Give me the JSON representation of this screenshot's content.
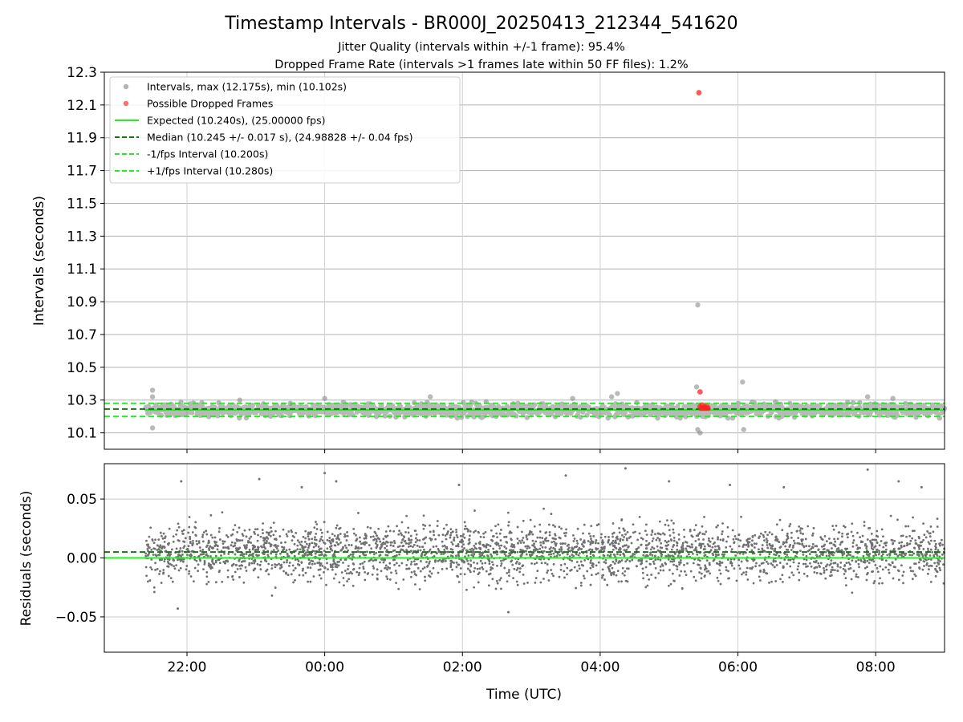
{
  "chart_data": {
    "type": "scatter",
    "title": "Timestamp Intervals - BR000J_20250413_212344_541620",
    "subtitle_1": "Jitter Quality (intervals within +/-1 frame): 95.4%",
    "subtitle_2": "Dropped Frame Rate (intervals >1 frames late within 50 FF files): 1.2%",
    "xlabel": "Time (UTC)",
    "x_range": [
      "2025-04-13 20:48",
      "2025-04-14 09:00"
    ],
    "x_ticks": [
      {
        "time": "2025-04-13 22:00",
        "label": "22:00"
      },
      {
        "time": "2025-04-14 00:00",
        "label": "00:00"
      },
      {
        "time": "2025-04-14 02:00",
        "label": "02:00"
      },
      {
        "time": "2025-04-14 04:00",
        "label": "04:00"
      },
      {
        "time": "2025-04-14 06:00",
        "label": "06:00"
      },
      {
        "time": "2025-04-14 08:00",
        "label": "08:00"
      }
    ],
    "data_x_range": [
      "2025-04-13 21:24",
      "2025-04-14 09:00"
    ],
    "upper_panel": {
      "ylabel": "Intervals (seconds)",
      "ylim": [
        10.0,
        12.3
      ],
      "y_ticks": [
        "10.1",
        "10.3",
        "10.5",
        "10.7",
        "10.9",
        "11.1",
        "11.3",
        "11.5",
        "11.7",
        "11.9",
        "12.1",
        "12.3"
      ],
      "grid": true,
      "legend_position": "top-left",
      "legend": [
        {
          "label": "Intervals, max (12.175s), min (10.102s)",
          "kind": "marker",
          "color": "#a0a0a0"
        },
        {
          "label": "Possible Dropped Frames",
          "kind": "marker",
          "color": "#ff5555"
        },
        {
          "label": "Expected (10.240s), (25.00000 fps)",
          "kind": "solid",
          "color": "#22ee22"
        },
        {
          "label": "Median (10.245 +/- 0.017 s), (24.98828 +/- 0.04 fps)",
          "kind": "dashed",
          "color": "#117711"
        },
        {
          "label": "-1/fps Interval (10.200s)",
          "kind": "dashed",
          "color": "#22ee22"
        },
        {
          "label": "+1/fps Interval (10.280s)",
          "kind": "dashed",
          "color": "#22ee22"
        }
      ],
      "reference_lines": {
        "expected": 10.24,
        "median": 10.245,
        "minus_one_fps": 10.2,
        "plus_one_fps": 10.28
      },
      "interval_band": [
        10.2,
        10.28
      ],
      "outliers": [
        {
          "time": "2025-04-13 21:30",
          "value": 10.36
        },
        {
          "time": "2025-04-13 21:30",
          "value": 10.32
        },
        {
          "time": "2025-04-13 21:30",
          "value": 10.13
        },
        {
          "time": "2025-04-13 22:46",
          "value": 10.3
        },
        {
          "time": "2025-04-13 23:30",
          "value": 10.28
        },
        {
          "time": "2025-04-14 00:00",
          "value": 10.31
        },
        {
          "time": "2025-04-14 01:32",
          "value": 10.32
        },
        {
          "time": "2025-04-14 03:36",
          "value": 10.31
        },
        {
          "time": "2025-04-14 04:10",
          "value": 10.32
        },
        {
          "time": "2025-04-14 04:15",
          "value": 10.34
        },
        {
          "time": "2025-04-14 05:25",
          "value": 10.88
        },
        {
          "time": "2025-04-14 05:24",
          "value": 10.38
        },
        {
          "time": "2025-04-14 05:25",
          "value": 10.12
        },
        {
          "time": "2025-04-14 05:27",
          "value": 10.1
        },
        {
          "time": "2025-04-14 06:04",
          "value": 10.41
        },
        {
          "time": "2025-04-14 06:05",
          "value": 10.12
        },
        {
          "time": "2025-04-14 07:53",
          "value": 10.32
        },
        {
          "time": "2025-04-14 08:15",
          "value": 10.31
        }
      ],
      "dropped_frames": [
        {
          "time": "2025-04-14 05:26",
          "value": 12.175
        },
        {
          "time": "2025-04-14 05:27",
          "value": 10.35
        },
        {
          "time": "2025-04-14 05:27",
          "value": 10.26
        },
        {
          "time": "2025-04-14 05:28",
          "value": 10.25
        },
        {
          "time": "2025-04-14 05:29",
          "value": 10.27
        },
        {
          "time": "2025-04-14 05:30",
          "value": 10.25
        },
        {
          "time": "2025-04-14 05:31",
          "value": 10.26
        },
        {
          "time": "2025-04-14 05:32",
          "value": 10.25
        },
        {
          "time": "2025-04-14 05:33",
          "value": 10.26
        },
        {
          "time": "2025-04-14 05:34",
          "value": 10.25
        }
      ]
    },
    "lower_panel": {
      "ylabel": "Residuals (seconds)",
      "ylim": [
        -0.08,
        0.08
      ],
      "y_ticks": [
        "0.05",
        "0.00",
        "−0.05"
      ],
      "grid": true,
      "reference_lines": {
        "zero": 0.0,
        "median_offset": 0.005
      },
      "residual_outliers": [
        {
          "time": "2025-04-13 21:55",
          "value": 0.065
        },
        {
          "time": "2025-04-13 21:52",
          "value": -0.043
        },
        {
          "time": "2025-04-13 23:03",
          "value": 0.067
        },
        {
          "time": "2025-04-13 23:40",
          "value": 0.06
        },
        {
          "time": "2025-04-14 00:00",
          "value": 0.072
        },
        {
          "time": "2025-04-14 00:10",
          "value": 0.065
        },
        {
          "time": "2025-04-14 01:57",
          "value": 0.062
        },
        {
          "time": "2025-04-14 02:40",
          "value": -0.046
        },
        {
          "time": "2025-04-14 03:30",
          "value": 0.07
        },
        {
          "time": "2025-04-14 04:22",
          "value": 0.076
        },
        {
          "time": "2025-04-14 05:00",
          "value": 0.065
        },
        {
          "time": "2025-04-14 05:53",
          "value": 0.062
        },
        {
          "time": "2025-04-14 06:40",
          "value": 0.06
        },
        {
          "time": "2025-04-14 07:53",
          "value": 0.075
        },
        {
          "time": "2025-04-14 08:20",
          "value": 0.065
        },
        {
          "time": "2025-04-14 08:40",
          "value": 0.06
        }
      ]
    }
  }
}
